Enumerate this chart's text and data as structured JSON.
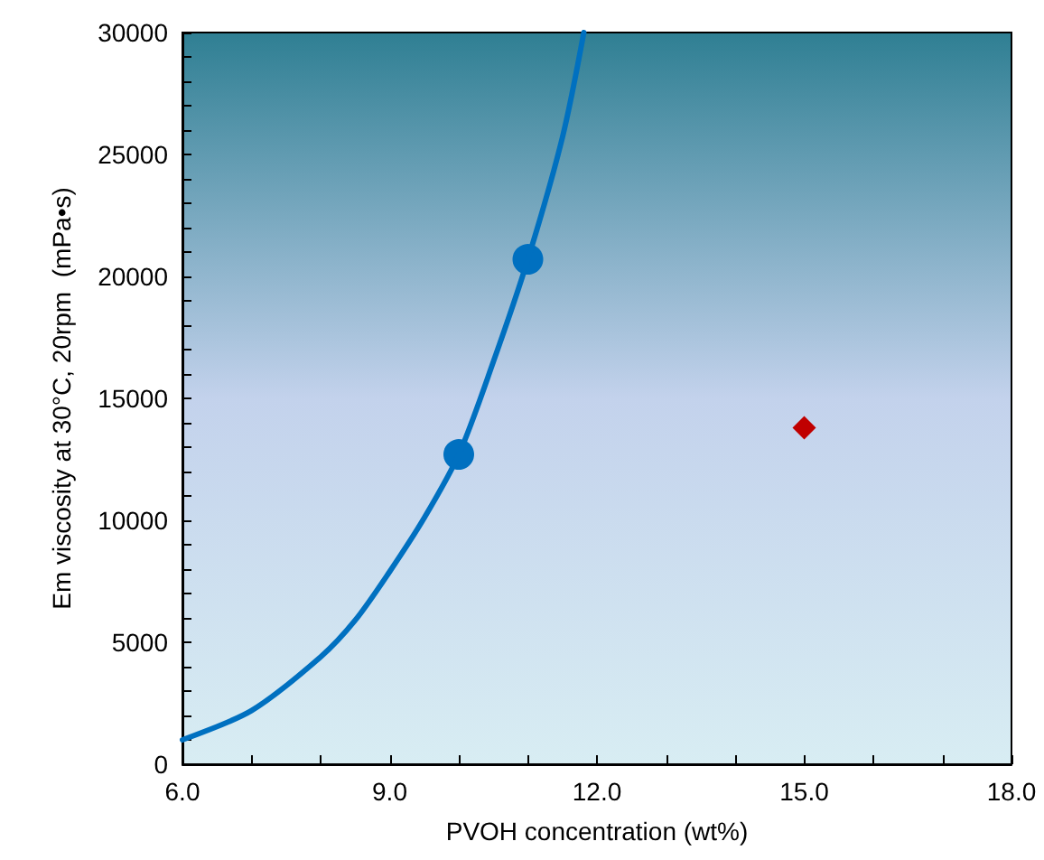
{
  "chart_data": {
    "type": "scatter",
    "xlabel": "PVOH concentration (wt%)",
    "ylabel": "Em viscosity at 30°C, 20rpm  (mPa•s)",
    "xlim": [
      6,
      18
    ],
    "xticks": [
      {
        "value": 6,
        "label": "6.0"
      },
      {
        "value": 7,
        "label": null
      },
      {
        "value": 8,
        "label": null
      },
      {
        "value": 9,
        "label": "9.0"
      },
      {
        "value": 10,
        "label": null
      },
      {
        "value": 11,
        "label": null
      },
      {
        "value": 12,
        "label": "12.0"
      },
      {
        "value": 13,
        "label": null
      },
      {
        "value": 14,
        "label": null
      },
      {
        "value": 15,
        "label": "15.0"
      },
      {
        "value": 16,
        "label": null
      },
      {
        "value": 17,
        "label": null
      },
      {
        "value": 18,
        "label": "18.0"
      }
    ],
    "ylim": [
      0,
      30000
    ],
    "yticks": [
      0,
      {
        "value": 1000,
        "label": null
      },
      {
        "value": 2000,
        "label": null
      },
      {
        "value": 3000,
        "label": null
      },
      {
        "value": 4000,
        "label": null
      },
      5000,
      {
        "value": 6000,
        "label": null
      },
      {
        "value": 7000,
        "label": null
      },
      {
        "value": 8000,
        "label": null
      },
      {
        "value": 9000,
        "label": null
      },
      10000,
      {
        "value": 11000,
        "label": null
      },
      {
        "value": 12000,
        "label": null
      },
      {
        "value": 13000,
        "label": null
      },
      {
        "value": 14000,
        "label": null
      },
      15000,
      {
        "value": 16000,
        "label": null
      },
      {
        "value": 17000,
        "label": null
      },
      {
        "value": 18000,
        "label": null
      },
      {
        "value": 19000,
        "label": null
      },
      20000,
      {
        "value": 21000,
        "label": null
      },
      {
        "value": 22000,
        "label": null
      },
      {
        "value": 23000,
        "label": null
      },
      {
        "value": 24000,
        "label": null
      },
      25000,
      {
        "value": 26000,
        "label": null
      },
      {
        "value": 27000,
        "label": null
      },
      {
        "value": 28000,
        "label": null
      },
      {
        "value": 29000,
        "label": null
      },
      30000
    ],
    "grid": false,
    "legend": false,
    "series": [
      {
        "type": "line",
        "color": "#0070c0",
        "marker": "none",
        "line_style": "solid",
        "x": [
          6,
          7,
          8,
          8.5,
          9,
          9.5,
          10,
          10.5,
          11,
          11.5,
          11.81
        ],
        "values": [
          1000,
          2200,
          4400,
          5900,
          7900,
          10100,
          12700,
          16500,
          20700,
          25700,
          30000
        ]
      },
      {
        "color": "#0070c0",
        "marker": "circle",
        "x": [
          10,
          11
        ],
        "values": [
          12700,
          20700
        ]
      },
      {
        "color": "#c00000",
        "marker": "diamond",
        "x": [
          15
        ],
        "values": [
          13800
        ]
      }
    ]
  }
}
